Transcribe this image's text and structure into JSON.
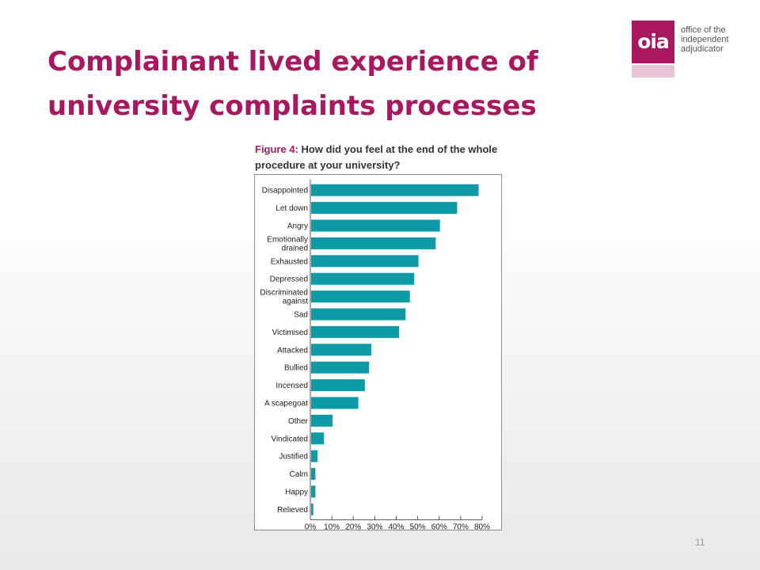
{
  "slide": {
    "title": "Complainant lived experience of university complaints processes",
    "page_number": "11"
  },
  "logo": {
    "mark": "oia",
    "lines": [
      "office of the",
      "independent",
      "adjudicator"
    ],
    "brand_color": "#a8175f"
  },
  "figure": {
    "label": "Figure 4:",
    "question": "How did you feel at the end of the whole procedure at your university?"
  },
  "chart_data": {
    "type": "bar",
    "orientation": "horizontal",
    "categories": [
      "Disappointed",
      "Let down",
      "Angry",
      "Emotionally drained",
      "Exhausted",
      "Depressed",
      "Discriminated against",
      "Sad",
      "Victimised",
      "Attacked",
      "Bullied",
      "Incensed",
      "A scapegoat",
      "Other",
      "Vindicated",
      "Justified",
      "Calm",
      "Happy",
      "Relieved"
    ],
    "values": [
      78,
      68,
      60,
      58,
      50,
      48,
      46,
      44,
      41,
      28,
      27,
      25,
      22,
      10,
      6,
      3,
      2,
      2,
      1
    ],
    "xlim": [
      0,
      80
    ],
    "xticks": [
      "0%",
      "10%",
      "20%",
      "30%",
      "40%",
      "50%",
      "60%",
      "70%",
      "80%"
    ],
    "xlabel": "",
    "ylabel": "",
    "grid": false,
    "bar_color": "#0e9aa7"
  }
}
